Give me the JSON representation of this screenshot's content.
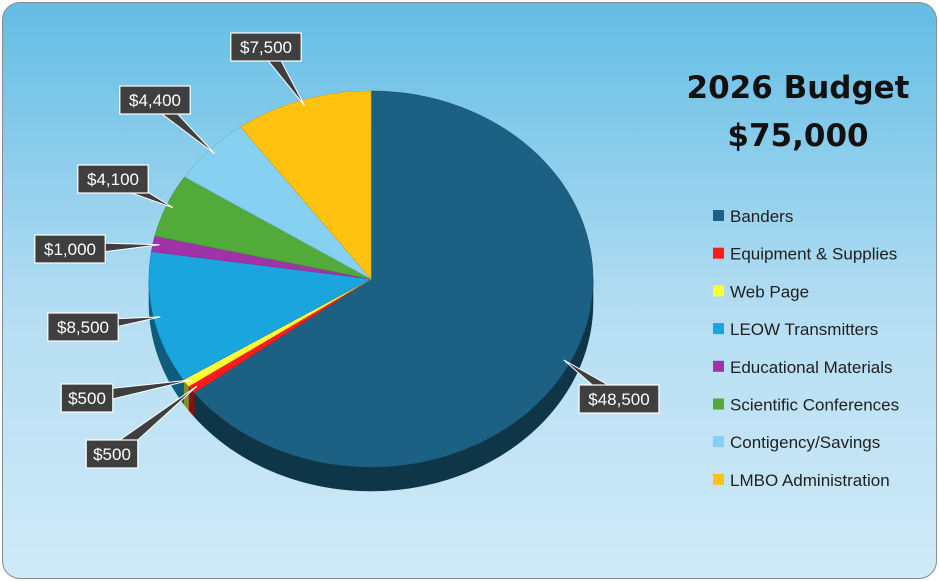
{
  "chart_data": {
    "type": "pie",
    "title": "2026 Budget",
    "subtitle": "$75,000",
    "legend_position": "right",
    "slices": [
      {
        "name": "Banders",
        "value": 48500,
        "label": "$48,500",
        "color": "#1c6184"
      },
      {
        "name": "Equipment & Supplies",
        "value": 500,
        "label": "$500",
        "color": "#ff1a1a"
      },
      {
        "name": "Web Page",
        "value": 500,
        "label": "$500",
        "color": "#ffff33"
      },
      {
        "name": "LEOW Transmitters",
        "value": 8500,
        "label": "$8,500",
        "color": "#1aa5df"
      },
      {
        "name": "Educational Materials",
        "value": 1000,
        "label": "$1,000",
        "color": "#a033a8"
      },
      {
        "name": "Scientific Conferences",
        "value": 4100,
        "label": "$4,100",
        "color": "#52aa3b"
      },
      {
        "name": "Contigency/Savings",
        "value": 4400,
        "label": "$4,400",
        "color": "#86d0f2"
      },
      {
        "name": "LMBO Administration",
        "value": 7500,
        "label": "$7,500",
        "color": "#ffc20e"
      }
    ]
  }
}
